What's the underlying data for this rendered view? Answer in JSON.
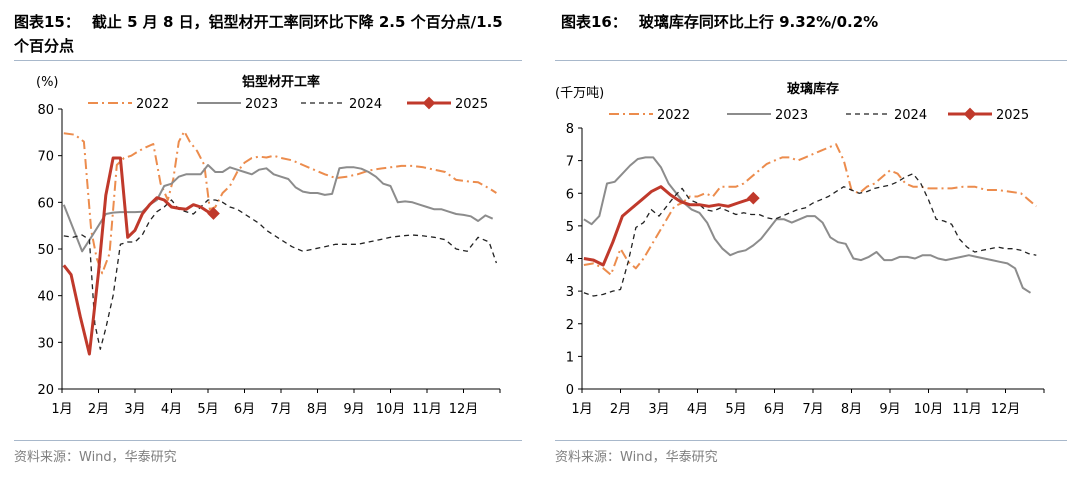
{
  "source_text": "资料来源：Wind，华泰研究",
  "chart_data": [
    {
      "type": "line",
      "figure_label": "图表15：",
      "figure_title": "截止 5 月 8 日，铝型材开工率同环比下降 2.5 个百分点/1.5 个百分点",
      "title": "铝型材开工率",
      "ylabel": "(%)",
      "ylim": [
        20,
        80
      ],
      "yticks": [
        20,
        30,
        40,
        50,
        60,
        70,
        80
      ],
      "xlim": [
        0,
        12
      ],
      "xtick_labels": [
        "1月",
        "2月",
        "3月",
        "4月",
        "5月",
        "6月",
        "7月",
        "8月",
        "9月",
        "10月",
        "11月",
        "12月"
      ],
      "grid": false,
      "legend_position": "top",
      "series": [
        {
          "name": "2022",
          "color": "#ec8c4d",
          "style": "dashdot",
          "x": [
            0.05,
            0.35,
            0.6,
            0.8,
            0.95,
            1.1,
            1.3,
            1.5,
            1.7,
            1.9,
            2.1,
            2.3,
            2.5,
            2.7,
            2.9,
            3.05,
            3.2,
            3.35,
            3.5,
            3.7,
            3.9,
            4.05,
            4.2,
            4.4,
            4.6,
            4.8,
            5.0,
            5.2,
            5.4,
            5.6,
            5.8,
            6.0,
            6.3,
            6.6,
            6.9,
            7.2,
            7.5,
            7.8,
            8.1,
            8.4,
            8.7,
            9.0,
            9.3,
            9.6,
            9.9,
            10.2,
            10.5,
            10.8,
            11.1,
            11.4,
            11.7,
            11.9
          ],
          "y": [
            74.8,
            74.5,
            73.0,
            54.0,
            48.0,
            44.8,
            49.0,
            68.0,
            69.5,
            70.0,
            71.0,
            71.8,
            72.5,
            64.0,
            60.5,
            65.0,
            73.0,
            75.2,
            73.0,
            71.0,
            68.0,
            58.5,
            59.0,
            62.0,
            63.5,
            66.5,
            68.5,
            69.5,
            69.8,
            69.6,
            70.0,
            69.5,
            69.0,
            68.0,
            67.0,
            66.0,
            65.2,
            65.5,
            66.0,
            66.8,
            67.2,
            67.5,
            67.8,
            67.8,
            67.5,
            67.0,
            66.5,
            64.8,
            64.5,
            64.3,
            63.0,
            62.0
          ]
        },
        {
          "name": "2023",
          "color": "#8c8c8c",
          "style": "solid",
          "x": [
            0.05,
            0.3,
            0.55,
            0.8,
            1.0,
            1.2,
            1.4,
            1.6,
            1.8,
            2.0,
            2.2,
            2.4,
            2.6,
            2.8,
            3.0,
            3.2,
            3.4,
            3.6,
            3.8,
            4.0,
            4.2,
            4.4,
            4.6,
            4.8,
            5.0,
            5.2,
            5.4,
            5.6,
            5.8,
            6.0,
            6.2,
            6.4,
            6.6,
            6.8,
            7.0,
            7.2,
            7.4,
            7.6,
            7.8,
            8.0,
            8.2,
            8.4,
            8.6,
            8.8,
            9.0,
            9.2,
            9.4,
            9.6,
            9.8,
            10.0,
            10.2,
            10.4,
            10.6,
            10.8,
            11.0,
            11.2,
            11.4,
            11.6,
            11.8
          ],
          "y": [
            59.5,
            54.5,
            49.5,
            52.5,
            55.0,
            57.5,
            57.8,
            57.9,
            57.9,
            57.9,
            58.0,
            59.5,
            60.5,
            63.5,
            64.0,
            65.5,
            66.0,
            66.0,
            66.0,
            68.0,
            66.5,
            66.5,
            67.5,
            67.0,
            66.5,
            66.0,
            67.0,
            67.3,
            66.0,
            65.5,
            65.0,
            63.2,
            62.3,
            62.0,
            62.0,
            61.6,
            61.8,
            67.3,
            67.5,
            67.5,
            67.2,
            66.5,
            65.5,
            64.0,
            63.5,
            60.0,
            60.2,
            60.0,
            59.5,
            59.0,
            58.5,
            58.5,
            58.0,
            57.5,
            57.3,
            57.0,
            56.0,
            57.2,
            56.5
          ]
        },
        {
          "name": "2024",
          "color": "#222222",
          "style": "dashed",
          "x": [
            0.05,
            0.3,
            0.55,
            0.75,
            0.9,
            1.05,
            1.2,
            1.4,
            1.6,
            1.8,
            2.0,
            2.2,
            2.4,
            2.6,
            2.8,
            3.0,
            3.2,
            3.4,
            3.6,
            3.8,
            4.0,
            4.2,
            4.4,
            4.6,
            4.8,
            5.0,
            5.2,
            5.4,
            5.6,
            5.8,
            6.0,
            6.3,
            6.6,
            6.9,
            7.2,
            7.5,
            7.8,
            8.1,
            8.4,
            8.7,
            9.0,
            9.3,
            9.6,
            9.9,
            10.2,
            10.5,
            10.8,
            11.1,
            11.4,
            11.7,
            11.9
          ],
          "y": [
            52.8,
            52.5,
            53.0,
            52.0,
            34.0,
            28.5,
            33.0,
            40.0,
            51.0,
            51.5,
            51.5,
            53.0,
            56.0,
            58.0,
            59.0,
            60.5,
            58.5,
            58.0,
            57.5,
            59.0,
            60.5,
            60.5,
            60.0,
            59.0,
            58.5,
            57.5,
            56.5,
            55.5,
            54.0,
            53.0,
            52.0,
            50.5,
            49.5,
            50.0,
            50.5,
            51.0,
            51.0,
            51.0,
            51.5,
            52.0,
            52.5,
            52.8,
            53.0,
            52.8,
            52.5,
            52.0,
            50.0,
            49.5,
            52.5,
            51.5,
            47.0
          ]
        },
        {
          "name": "2025",
          "color": "#c0392b",
          "style": "solid-marker",
          "x": [
            0.05,
            0.25,
            0.5,
            0.75,
            1.0,
            1.2,
            1.4,
            1.6,
            1.8,
            2.0,
            2.2,
            2.4,
            2.6,
            2.8,
            3.0,
            3.2,
            3.4,
            3.6,
            3.8,
            4.0,
            4.15
          ],
          "y": [
            46.5,
            44.5,
            35.5,
            27.5,
            45.0,
            61.5,
            69.5,
            69.5,
            52.5,
            54.0,
            57.5,
            59.5,
            61.0,
            60.5,
            59.0,
            58.7,
            58.5,
            59.5,
            59.0,
            58.0,
            57.6
          ]
        }
      ]
    },
    {
      "type": "line",
      "figure_label": "图表16：",
      "figure_title": "玻璃库存同环比上行 9.32%/0.2%",
      "title": "玻璃库存",
      "ylabel": "(千万吨)",
      "ylim": [
        0,
        8
      ],
      "yticks": [
        0,
        1,
        2,
        3,
        4,
        5,
        6,
        7,
        8
      ],
      "xlim": [
        0,
        12
      ],
      "xtick_labels": [
        "1月",
        "2月",
        "3月",
        "4月",
        "5月",
        "6月",
        "7月",
        "8月",
        "9月",
        "10月",
        "11月",
        "12月"
      ],
      "grid": false,
      "legend_position": "top",
      "series": [
        {
          "name": "2022",
          "color": "#ec8c4d",
          "style": "dashdot",
          "x": [
            0.05,
            0.3,
            0.55,
            0.75,
            1.0,
            1.2,
            1.4,
            1.6,
            1.8,
            2.0,
            2.2,
            2.4,
            2.6,
            2.8,
            3.0,
            3.2,
            3.4,
            3.6,
            3.8,
            4.0,
            4.2,
            4.4,
            4.6,
            4.8,
            5.0,
            5.2,
            5.4,
            5.6,
            5.8,
            6.0,
            6.2,
            6.4,
            6.6,
            6.8,
            7.0,
            7.2,
            7.4,
            7.6,
            7.8,
            8.0,
            8.2,
            8.4,
            8.6,
            8.8,
            9.0,
            9.3,
            9.6,
            9.9,
            10.2,
            10.5,
            10.8,
            11.1,
            11.4,
            11.6,
            11.8
          ],
          "y": [
            3.8,
            3.85,
            3.7,
            3.5,
            4.3,
            3.9,
            3.7,
            4.0,
            4.4,
            4.8,
            5.2,
            5.6,
            5.7,
            5.9,
            5.9,
            6.0,
            5.9,
            6.2,
            6.2,
            6.2,
            6.3,
            6.5,
            6.7,
            6.9,
            7.0,
            7.1,
            7.1,
            7.0,
            7.1,
            7.2,
            7.3,
            7.4,
            7.5,
            7.0,
            6.1,
            6.0,
            6.2,
            6.3,
            6.5,
            6.7,
            6.6,
            6.3,
            6.2,
            6.2,
            6.15,
            6.15,
            6.15,
            6.2,
            6.2,
            6.1,
            6.1,
            6.05,
            6.0,
            5.8,
            5.6
          ]
        },
        {
          "name": "2023",
          "color": "#8c8c8c",
          "style": "solid",
          "x": [
            0.05,
            0.25,
            0.45,
            0.65,
            0.85,
            1.05,
            1.25,
            1.45,
            1.65,
            1.85,
            2.05,
            2.25,
            2.45,
            2.65,
            2.85,
            3.05,
            3.25,
            3.45,
            3.65,
            3.85,
            4.05,
            4.25,
            4.45,
            4.65,
            4.85,
            5.05,
            5.25,
            5.45,
            5.65,
            5.85,
            6.05,
            6.25,
            6.45,
            6.65,
            6.85,
            7.05,
            7.25,
            7.45,
            7.65,
            7.85,
            8.05,
            8.25,
            8.45,
            8.65,
            8.85,
            9.05,
            9.25,
            9.45,
            9.65,
            9.85,
            10.05,
            10.25,
            10.45,
            10.65,
            10.85,
            11.05,
            11.25,
            11.45,
            11.65
          ],
          "y": [
            5.2,
            5.05,
            5.3,
            6.3,
            6.35,
            6.6,
            6.85,
            7.05,
            7.1,
            7.1,
            6.8,
            6.3,
            6.0,
            5.7,
            5.5,
            5.4,
            5.1,
            4.6,
            4.3,
            4.1,
            4.2,
            4.25,
            4.4,
            4.6,
            4.9,
            5.2,
            5.2,
            5.1,
            5.2,
            5.3,
            5.3,
            5.1,
            4.65,
            4.5,
            4.45,
            4.0,
            3.95,
            4.05,
            4.2,
            3.95,
            3.95,
            4.05,
            4.05,
            4.0,
            4.1,
            4.1,
            4.0,
            3.95,
            4.0,
            4.05,
            4.1,
            4.05,
            4.0,
            3.95,
            3.9,
            3.85,
            3.7,
            3.1,
            2.95
          ]
        },
        {
          "name": "2024",
          "color": "#222222",
          "style": "dashed",
          "x": [
            0.05,
            0.3,
            0.55,
            0.8,
            1.0,
            1.2,
            1.4,
            1.6,
            1.8,
            2.0,
            2.2,
            2.4,
            2.6,
            2.8,
            3.0,
            3.2,
            3.4,
            3.6,
            3.8,
            4.0,
            4.2,
            4.4,
            4.6,
            4.8,
            5.0,
            5.2,
            5.4,
            5.6,
            5.8,
            6.0,
            6.2,
            6.4,
            6.6,
            6.8,
            7.0,
            7.2,
            7.4,
            7.6,
            7.8,
            8.0,
            8.2,
            8.4,
            8.6,
            8.8,
            9.0,
            9.2,
            9.4,
            9.6,
            9.8,
            10.0,
            10.2,
            10.4,
            10.6,
            10.8,
            11.0,
            11.2,
            11.4,
            11.6,
            11.8
          ],
          "y": [
            2.95,
            2.85,
            2.9,
            3.0,
            3.05,
            3.9,
            4.95,
            5.1,
            5.5,
            5.3,
            5.6,
            5.9,
            6.15,
            5.8,
            5.7,
            5.5,
            5.45,
            5.55,
            5.45,
            5.35,
            5.4,
            5.35,
            5.35,
            5.25,
            5.2,
            5.3,
            5.4,
            5.5,
            5.55,
            5.7,
            5.8,
            5.9,
            6.05,
            6.2,
            6.1,
            6.0,
            6.05,
            6.15,
            6.2,
            6.25,
            6.35,
            6.5,
            6.6,
            6.3,
            5.8,
            5.2,
            5.15,
            5.05,
            4.6,
            4.35,
            4.2,
            4.25,
            4.3,
            4.35,
            4.3,
            4.3,
            4.25,
            4.15,
            4.1
          ]
        },
        {
          "name": "2025",
          "color": "#c0392b",
          "style": "solid-marker",
          "x": [
            0.05,
            0.3,
            0.55,
            0.8,
            1.05,
            1.3,
            1.55,
            1.8,
            2.05,
            2.3,
            2.55,
            2.8,
            3.05,
            3.3,
            3.55,
            3.8,
            4.05,
            4.3,
            4.45
          ],
          "y": [
            4.0,
            3.95,
            3.8,
            4.5,
            5.3,
            5.55,
            5.8,
            6.05,
            6.2,
            5.95,
            5.75,
            5.65,
            5.65,
            5.6,
            5.65,
            5.6,
            5.7,
            5.8,
            5.85
          ]
        }
      ]
    }
  ]
}
